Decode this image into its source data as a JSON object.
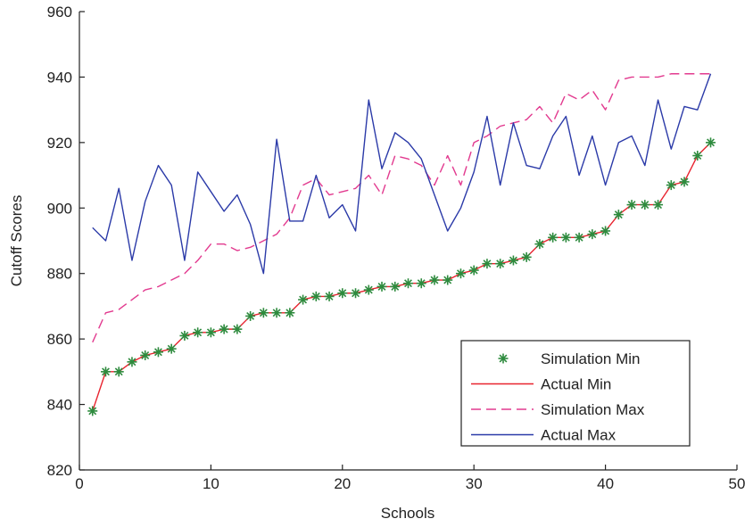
{
  "chart_data": {
    "type": "line",
    "title": "",
    "xlabel": "Schools",
    "ylabel": "Cutoff Scores",
    "xlim": [
      0,
      50
    ],
    "ylim": [
      820,
      960
    ],
    "xticks": [
      0,
      10,
      20,
      30,
      40,
      50
    ],
    "yticks": [
      820,
      840,
      860,
      880,
      900,
      920,
      940,
      960
    ],
    "grid": false,
    "legend_position": "bottom-right",
    "x": [
      1,
      2,
      3,
      4,
      5,
      6,
      7,
      8,
      9,
      10,
      11,
      12,
      13,
      14,
      15,
      16,
      17,
      18,
      19,
      20,
      21,
      22,
      23,
      24,
      25,
      26,
      27,
      28,
      29,
      30,
      31,
      32,
      33,
      34,
      35,
      36,
      37,
      38,
      39,
      40,
      41,
      42,
      43,
      44,
      45,
      46,
      47,
      48
    ],
    "series": [
      {
        "name": "Simulation Min",
        "style": "markers",
        "color": "#2e8b3e",
        "values": [
          838,
          850,
          850,
          853,
          855,
          856,
          857,
          861,
          862,
          862,
          863,
          863,
          867,
          868,
          868,
          868,
          872,
          873,
          873,
          874,
          874,
          875,
          876,
          876,
          877,
          877,
          878,
          878,
          880,
          881,
          883,
          883,
          884,
          885,
          889,
          891,
          891,
          891,
          892,
          893,
          898,
          901,
          901,
          901,
          907,
          908,
          916,
          920
        ]
      },
      {
        "name": "Actual Min",
        "style": "solid",
        "color": "#e8232f",
        "values": [
          838,
          850,
          850,
          853,
          855,
          856,
          857,
          861,
          862,
          862,
          863,
          863,
          867,
          868,
          868,
          868,
          872,
          873,
          873,
          874,
          874,
          875,
          876,
          876,
          877,
          877,
          878,
          878,
          880,
          881,
          883,
          883,
          884,
          885,
          889,
          891,
          891,
          891,
          892,
          893,
          898,
          901,
          901,
          901,
          907,
          908,
          916,
          920
        ]
      },
      {
        "name": "Simulation Max",
        "style": "dashed",
        "color": "#e23a8f",
        "values": [
          859,
          868,
          869,
          872,
          875,
          876,
          878,
          880,
          884,
          889,
          889,
          887,
          888,
          890,
          892,
          897,
          907,
          909,
          904,
          905,
          906,
          910,
          904,
          916,
          915,
          913,
          907,
          916,
          907,
          920,
          922,
          925,
          926,
          927,
          931,
          926,
          935,
          933,
          936,
          930,
          939,
          940,
          940,
          940,
          941,
          941,
          941,
          941
        ]
      },
      {
        "name": "Actual Max",
        "style": "solid",
        "color": "#2b3aa8",
        "values": [
          894,
          890,
          906,
          884,
          902,
          913,
          907,
          884,
          911,
          905,
          899,
          904,
          895,
          880,
          921,
          896,
          896,
          910,
          897,
          901,
          893,
          933,
          912,
          923,
          920,
          915,
          904,
          893,
          900,
          911,
          928,
          907,
          926,
          913,
          912,
          922,
          928,
          910,
          922,
          907,
          920,
          922,
          913,
          933,
          918,
          931,
          930,
          941
        ]
      }
    ]
  }
}
